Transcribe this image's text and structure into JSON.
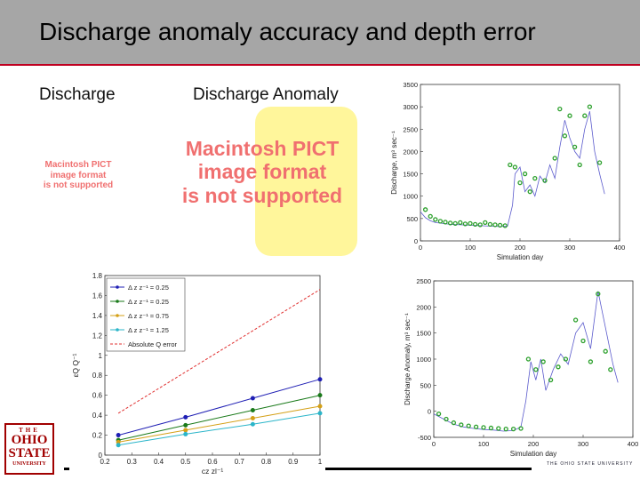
{
  "slide": {
    "title": "Discharge anomaly accuracy and depth error",
    "label_left": "Discharge",
    "label_right": "Discharge Anomaly",
    "pict_message": "Macintosh PICT\nimage format\nis not supported",
    "logo_line1": "THE",
    "logo_line2": "OHIO",
    "logo_line3": "STATE",
    "logo_line4": "UNIVERSITY",
    "footer_text": "THE OHIO STATE UNIVERSITY"
  },
  "chart_data": [
    {
      "type": "line",
      "xlabel": "Simulation day",
      "ylabel": "Discharge, m³ sec⁻¹",
      "xlim": [
        0,
        400
      ],
      "ylim": [
        0,
        3500
      ],
      "xticks": [
        0,
        100,
        200,
        300,
        400
      ],
      "yticks": [
        0,
        500,
        1000,
        1500,
        2000,
        2500,
        3000,
        3500
      ],
      "series": [
        {
          "style": "line",
          "color": "#5a5acc",
          "x": [
            0,
            10,
            20,
            30,
            45,
            60,
            80,
            100,
            120,
            140,
            160,
            175,
            185,
            190,
            200,
            210,
            220,
            230,
            240,
            250,
            260,
            270,
            280,
            290,
            300,
            310,
            320,
            330,
            340,
            350,
            360,
            370
          ],
          "y": [
            650,
            520,
            450,
            410,
            390,
            370,
            360,
            350,
            340,
            330,
            320,
            330,
            800,
            1500,
            1650,
            1100,
            1250,
            1000,
            1450,
            1300,
            1700,
            1400,
            2100,
            2700,
            2300,
            2000,
            1850,
            2500,
            2900,
            2000,
            1500,
            1050
          ]
        },
        {
          "style": "markers",
          "color": "#2ca02c",
          "x": [
            10,
            20,
            30,
            40,
            50,
            60,
            70,
            80,
            90,
            100,
            110,
            120,
            130,
            140,
            150,
            160,
            170,
            180,
            190,
            200,
            210,
            220,
            230,
            250,
            270,
            280,
            290,
            300,
            310,
            320,
            330,
            340,
            360
          ],
          "y": [
            700,
            550,
            480,
            440,
            420,
            400,
            390,
            410,
            380,
            390,
            370,
            360,
            410,
            370,
            360,
            350,
            340,
            1700,
            1650,
            1300,
            1500,
            1100,
            1400,
            1350,
            1850,
            2950,
            2350,
            2800,
            2100,
            1700,
            2800,
            3000,
            1750
          ]
        }
      ]
    },
    {
      "type": "line",
      "xlabel": "Simulation day",
      "ylabel": "Discharge Anomaly, m³ sec⁻¹",
      "xlim": [
        0,
        400
      ],
      "ylim": [
        -500,
        2500
      ],
      "xticks": [
        0,
        100,
        200,
        300,
        400
      ],
      "yticks": [
        -500,
        0,
        500,
        1000,
        1500,
        2000,
        2500
      ],
      "series": [
        {
          "style": "line",
          "color": "#5a5acc",
          "x": [
            0,
            20,
            40,
            60,
            80,
            100,
            120,
            140,
            160,
            175,
            185,
            195,
            205,
            215,
            225,
            240,
            255,
            270,
            285,
            300,
            315,
            330,
            345,
            360,
            370
          ],
          "y": [
            -50,
            -150,
            -250,
            -300,
            -330,
            -350,
            -360,
            -380,
            -370,
            -300,
            200,
            950,
            600,
            1000,
            400,
            800,
            1100,
            900,
            1500,
            1700,
            1200,
            2300,
            1600,
            900,
            550
          ]
        },
        {
          "style": "markers",
          "color": "#2ca02c",
          "x": [
            10,
            25,
            40,
            55,
            70,
            85,
            100,
            115,
            130,
            145,
            160,
            175,
            190,
            205,
            220,
            235,
            250,
            265,
            285,
            300,
            315,
            330,
            345,
            355
          ],
          "y": [
            -50,
            -150,
            -220,
            -260,
            -280,
            -300,
            -310,
            -320,
            -330,
            -340,
            -340,
            -330,
            1000,
            800,
            950,
            600,
            850,
            1000,
            1750,
            1350,
            950,
            2250,
            1150,
            800
          ]
        }
      ]
    },
    {
      "type": "line",
      "xlabel": "cz zl⁻¹",
      "ylabel": "εQ Q⁻¹",
      "xlim": [
        0.2,
        1
      ],
      "ylim": [
        0,
        1.8
      ],
      "xticks": [
        0.2,
        0.3,
        0.4,
        0.5,
        0.6,
        0.7,
        0.8,
        0.9,
        1
      ],
      "yticks": [
        0,
        0.2,
        0.4,
        0.6,
        0.8,
        1,
        1.2,
        1.4,
        1.6,
        1.8
      ],
      "legend_position": "top-left",
      "series": [
        {
          "name": "Δ z z⁻¹ = 0.25",
          "color": "#1f1fb4",
          "x": [
            0.25,
            0.5,
            0.75,
            1
          ],
          "y": [
            0.2,
            0.38,
            0.57,
            0.76
          ]
        },
        {
          "name": "Δ z z⁻¹ = 0.25",
          "color": "#1a7a1a",
          "x": [
            0.25,
            0.5,
            0.75,
            1
          ],
          "y": [
            0.15,
            0.3,
            0.45,
            0.6
          ]
        },
        {
          "name": "Δ z z⁻¹ = 0.75",
          "color": "#d4a017",
          "x": [
            0.25,
            0.5,
            0.75,
            1
          ],
          "y": [
            0.13,
            0.25,
            0.37,
            0.49
          ]
        },
        {
          "name": "Δ z z⁻¹ = 1.25",
          "color": "#2bb5c9",
          "x": [
            0.25,
            0.5,
            0.75,
            1
          ],
          "y": [
            0.1,
            0.21,
            0.31,
            0.42
          ]
        },
        {
          "name": "Absolute Q error",
          "color": "#e03030",
          "dashed": true,
          "x": [
            0.25,
            1
          ],
          "y": [
            0.42,
            1.66
          ]
        }
      ]
    }
  ]
}
